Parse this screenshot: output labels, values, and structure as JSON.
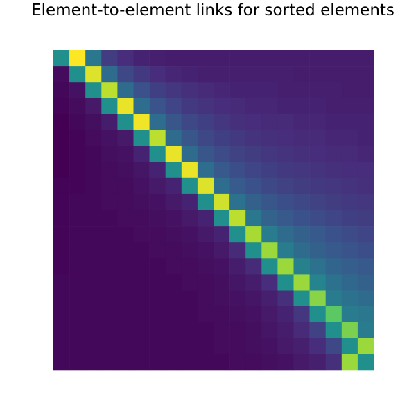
{
  "chart_data": {
    "type": "heatmap",
    "title": "Element-to-element links for sorted elements",
    "xlabel": "",
    "ylabel": "",
    "colormap": "viridis",
    "value_range": [
      0,
      1
    ],
    "axes_visible": false,
    "grid": false,
    "rows": 20,
    "cols": 20,
    "values": [
      [
        0.5,
        1.0,
        0.4,
        0.18,
        0.13,
        0.1,
        0.09,
        0.08,
        0.08,
        0.08,
        0.08,
        0.08,
        0.08,
        0.08,
        0.08,
        0.08,
        0.08,
        0.08,
        0.08,
        0.08
      ],
      [
        0.03,
        0.5,
        0.95,
        0.35,
        0.22,
        0.17,
        0.13,
        0.11,
        0.1,
        0.09,
        0.09,
        0.09,
        0.09,
        0.09,
        0.09,
        0.08,
        0.08,
        0.08,
        0.08,
        0.08
      ],
      [
        0.02,
        0.05,
        0.5,
        0.9,
        0.35,
        0.25,
        0.19,
        0.16,
        0.14,
        0.12,
        0.11,
        0.1,
        0.1,
        0.1,
        0.09,
        0.09,
        0.09,
        0.09,
        0.08,
        0.08
      ],
      [
        0.01,
        0.03,
        0.07,
        0.5,
        0.97,
        0.36,
        0.26,
        0.21,
        0.17,
        0.15,
        0.13,
        0.12,
        0.11,
        0.11,
        0.1,
        0.1,
        0.1,
        0.09,
        0.09,
        0.09
      ],
      [
        0.0,
        0.02,
        0.04,
        0.08,
        0.5,
        0.98,
        0.36,
        0.27,
        0.22,
        0.19,
        0.16,
        0.14,
        0.13,
        0.12,
        0.12,
        0.11,
        0.11,
        0.1,
        0.1,
        0.1
      ],
      [
        0.0,
        0.01,
        0.03,
        0.05,
        0.07,
        0.5,
        0.9,
        0.35,
        0.27,
        0.22,
        0.19,
        0.17,
        0.15,
        0.14,
        0.13,
        0.12,
        0.12,
        0.11,
        0.11,
        0.1
      ],
      [
        0.0,
        0.01,
        0.02,
        0.04,
        0.05,
        0.1,
        0.5,
        0.97,
        0.35,
        0.27,
        0.23,
        0.2,
        0.18,
        0.16,
        0.15,
        0.14,
        0.13,
        0.12,
        0.12,
        0.11
      ],
      [
        0.0,
        0.01,
        0.02,
        0.03,
        0.04,
        0.06,
        0.1,
        0.5,
        0.97,
        0.36,
        0.28,
        0.24,
        0.21,
        0.19,
        0.17,
        0.16,
        0.15,
        0.14,
        0.13,
        0.13
      ],
      [
        0.01,
        0.01,
        0.02,
        0.03,
        0.03,
        0.05,
        0.07,
        0.1,
        0.5,
        0.95,
        0.36,
        0.29,
        0.25,
        0.22,
        0.2,
        0.18,
        0.17,
        0.16,
        0.15,
        0.14
      ],
      [
        0.01,
        0.02,
        0.02,
        0.03,
        0.03,
        0.04,
        0.05,
        0.07,
        0.1,
        0.5,
        0.93,
        0.38,
        0.31,
        0.27,
        0.24,
        0.22,
        0.2,
        0.18,
        0.17,
        0.16
      ],
      [
        0.01,
        0.02,
        0.02,
        0.02,
        0.03,
        0.03,
        0.04,
        0.05,
        0.07,
        0.1,
        0.5,
        0.9,
        0.4,
        0.32,
        0.28,
        0.25,
        0.23,
        0.21,
        0.19,
        0.18
      ],
      [
        0.01,
        0.02,
        0.02,
        0.02,
        0.02,
        0.03,
        0.03,
        0.04,
        0.05,
        0.07,
        0.1,
        0.5,
        0.87,
        0.42,
        0.35,
        0.31,
        0.28,
        0.25,
        0.23,
        0.21
      ],
      [
        0.01,
        0.02,
        0.02,
        0.02,
        0.02,
        0.02,
        0.03,
        0.03,
        0.04,
        0.05,
        0.07,
        0.12,
        0.5,
        0.85,
        0.42,
        0.35,
        0.31,
        0.28,
        0.26,
        0.24
      ],
      [
        0.01,
        0.02,
        0.02,
        0.02,
        0.02,
        0.02,
        0.02,
        0.03,
        0.03,
        0.04,
        0.05,
        0.08,
        0.12,
        0.5,
        0.85,
        0.44,
        0.38,
        0.33,
        0.3,
        0.28
      ],
      [
        0.02,
        0.02,
        0.02,
        0.02,
        0.02,
        0.02,
        0.02,
        0.02,
        0.03,
        0.03,
        0.04,
        0.06,
        0.08,
        0.13,
        0.5,
        0.85,
        0.45,
        0.38,
        0.34,
        0.31
      ],
      [
        0.02,
        0.02,
        0.02,
        0.02,
        0.02,
        0.02,
        0.02,
        0.02,
        0.02,
        0.03,
        0.04,
        0.05,
        0.06,
        0.09,
        0.14,
        0.5,
        0.82,
        0.42,
        0.38,
        0.35
      ],
      [
        0.02,
        0.02,
        0.02,
        0.02,
        0.02,
        0.02,
        0.02,
        0.02,
        0.02,
        0.03,
        0.03,
        0.04,
        0.05,
        0.07,
        0.1,
        0.16,
        0.5,
        0.75,
        0.42,
        0.4
      ],
      [
        0.02,
        0.02,
        0.02,
        0.02,
        0.02,
        0.02,
        0.02,
        0.02,
        0.02,
        0.02,
        0.03,
        0.03,
        0.04,
        0.06,
        0.08,
        0.12,
        0.2,
        0.5,
        0.8,
        0.42
      ],
      [
        0.02,
        0.02,
        0.02,
        0.02,
        0.02,
        0.02,
        0.02,
        0.02,
        0.02,
        0.02,
        0.03,
        0.03,
        0.04,
        0.05,
        0.07,
        0.09,
        0.13,
        0.22,
        0.5,
        0.85
      ],
      [
        0.02,
        0.02,
        0.02,
        0.02,
        0.02,
        0.02,
        0.02,
        0.02,
        0.02,
        0.02,
        0.02,
        0.03,
        0.03,
        0.04,
        0.05,
        0.07,
        0.09,
        0.14,
        0.85,
        0.5
      ]
    ]
  }
}
